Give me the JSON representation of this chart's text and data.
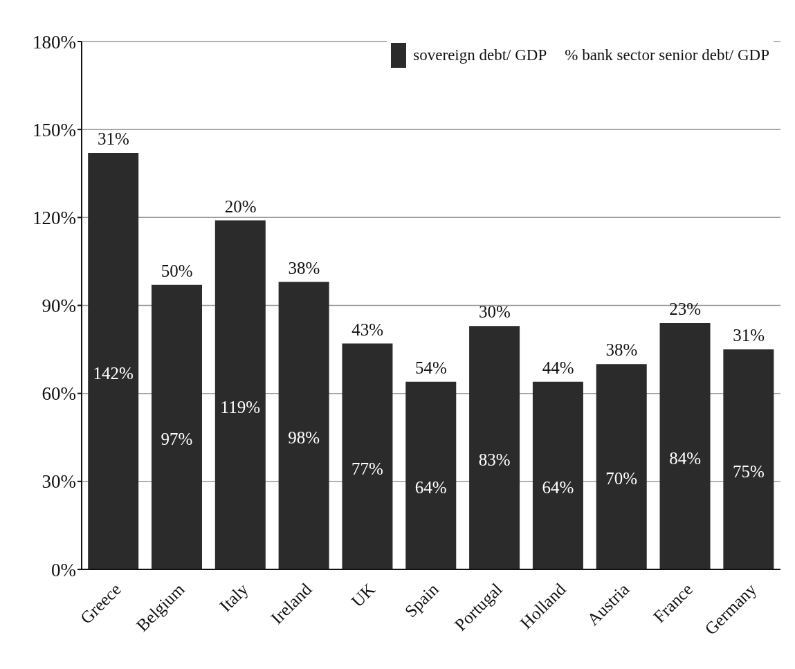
{
  "chart_data": {
    "type": "bar",
    "categories": [
      "Greece",
      "Belgium",
      "Italy",
      "Ireland",
      "UK",
      "Spain",
      "Portugal",
      "Holland",
      "Austria",
      "France",
      "Germany"
    ],
    "series": [
      {
        "name": "sovereign debt/ GDP",
        "color": "#2b2b2b",
        "values": [
          142,
          97,
          119,
          98,
          77,
          64,
          83,
          64,
          70,
          84,
          75
        ],
        "value_labels": [
          "142%",
          "97%",
          "119%",
          "98%",
          "77%",
          "64%",
          "83%",
          "64%",
          "70%",
          "84%",
          "75%"
        ]
      }
    ],
    "ylim": [
      0,
      180
    ],
    "yticks": [
      {
        "value": 0,
        "label": "0%"
      },
      {
        "value": 30,
        "label": "30%"
      },
      {
        "value": 60,
        "label": "60%"
      },
      {
        "value": 90,
        "label": "90%"
      },
      {
        "value": 120,
        "label": "120%"
      },
      {
        "value": 150,
        "label": "150%"
      },
      {
        "value": 180,
        "label": "180%"
      }
    ],
    "grid": "y",
    "legend": "top right",
    "annotations": [
      "% bank sector senior debt/ GDP",
      {
        "text": "31%",
        "x": "Greece",
        "y": 142
      },
      {
        "text": "50%",
        "x": "Belgium",
        "y": 97
      },
      {
        "text": "20%",
        "x": "Italy",
        "y": 119
      },
      {
        "text": "38%",
        "x": "Ireland",
        "y": 98
      },
      {
        "text": "43%",
        "x": "UK",
        "y": 77
      },
      {
        "text": "54%",
        "x": "Spain",
        "y": 64
      },
      {
        "text": "30%",
        "x": "Portugal",
        "y": 83
      },
      {
        "text": "44%",
        "x": "Holland",
        "y": 64
      },
      {
        "text": "38%",
        "x": "Austria",
        "y": 70
      },
      {
        "text": "23%",
        "x": "France",
        "y": 84
      },
      {
        "text": "31%",
        "x": "Germany",
        "y": 75
      }
    ]
  }
}
